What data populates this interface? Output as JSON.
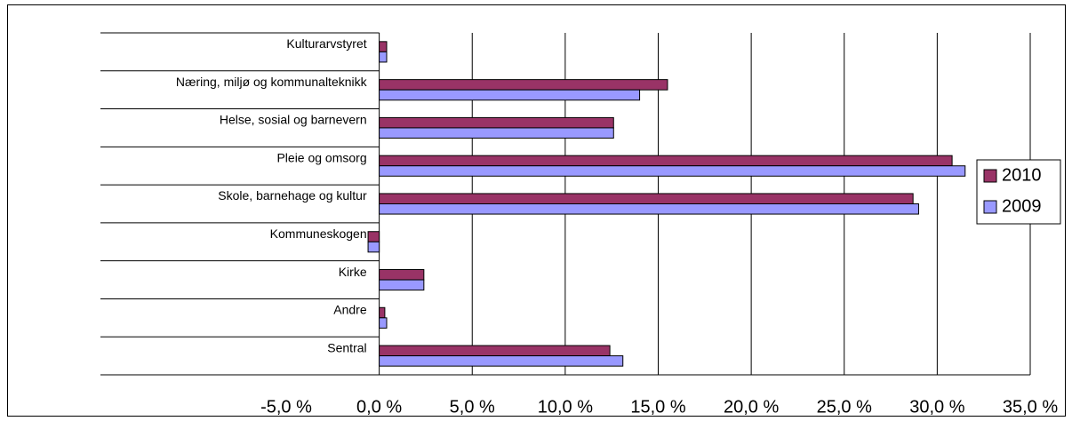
{
  "chart_data": {
    "type": "bar",
    "orientation": "horizontal",
    "categories": [
      "Kulturarvstyret",
      "Næring, miljø og kommunalteknikk",
      "Helse, sosial og barnevern",
      "Pleie og omsorg",
      "Skole, barnehage og kultur",
      "Kommuneskogen",
      "Kirke",
      "Andre",
      "Sentral"
    ],
    "series": [
      {
        "name": "2010",
        "color": "#993366",
        "values": [
          0.4,
          15.5,
          12.6,
          30.8,
          28.7,
          -0.6,
          2.4,
          0.3,
          12.4
        ]
      },
      {
        "name": "2009",
        "color": "#9999ff",
        "values": [
          0.4,
          14.0,
          12.6,
          31.5,
          29.0,
          -0.6,
          2.4,
          0.4,
          13.1
        ]
      }
    ],
    "xlim": [
      -5,
      35
    ],
    "xticks": [
      {
        "value": -5,
        "label": "-5,0 %"
      },
      {
        "value": 0,
        "label": "0,0 %"
      },
      {
        "value": 5,
        "label": "5,0 %"
      },
      {
        "value": 10,
        "label": "10,0 %"
      },
      {
        "value": 15,
        "label": "15,0 %"
      },
      {
        "value": 20,
        "label": "20,0 %"
      },
      {
        "value": 25,
        "label": "25,0 %"
      },
      {
        "value": 30,
        "label": "30,0 %"
      },
      {
        "value": 35,
        "label": "35,0 %"
      }
    ],
    "grid": true,
    "legend": "right"
  }
}
